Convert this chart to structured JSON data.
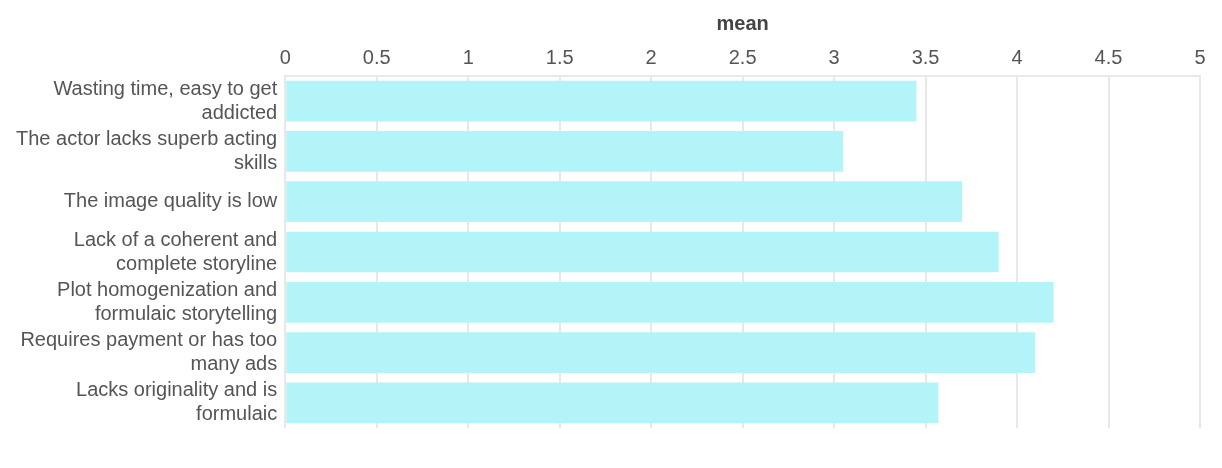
{
  "chart_data": {
    "type": "bar",
    "orientation": "horizontal",
    "xlabel": "mean",
    "categories": [
      "Wasting time, easy to get addicted",
      "The actor lacks superb acting skills",
      "The image quality is low",
      "Lack of a coherent and complete storyline",
      "Plot homogenization and formulaic storytelling",
      "Requires payment or has too many ads",
      "Lacks originality and is formulaic"
    ],
    "values": [
      3.45,
      3.05,
      3.7,
      3.9,
      4.2,
      4.1,
      3.57
    ],
    "color": "#b3f4f9",
    "xlim": [
      0,
      5
    ],
    "xticks": [
      0,
      0.5,
      1,
      1.5,
      2,
      2.5,
      3,
      3.5,
      4,
      4.5,
      5
    ],
    "grid": "x"
  }
}
